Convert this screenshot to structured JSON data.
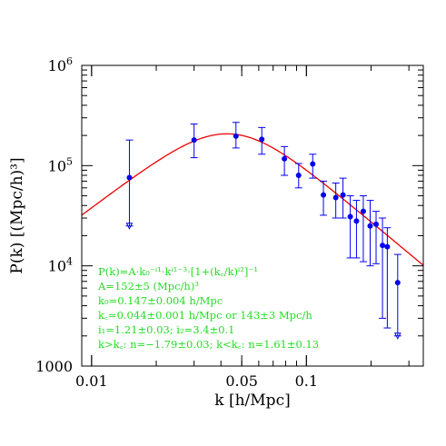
{
  "chart_data": {
    "type": "scatter",
    "x_scale": "log",
    "y_scale": "log",
    "xlim": [
      0.009,
      0.35
    ],
    "ylim": [
      1000,
      1000000
    ],
    "xlabel": "k [h/Mpc]",
    "ylabel": "P(k) [(Mpc/h)³]",
    "x_ticks": [
      {
        "value": 0.01,
        "label": "0.01"
      },
      {
        "value": 0.05,
        "label": "0.05"
      },
      {
        "value": 0.1,
        "label": "0.1"
      }
    ],
    "y_ticks": [
      {
        "value": 1000,
        "label": "1000",
        "base": "",
        "exp": ""
      },
      {
        "value": 10000,
        "label": "",
        "base": "10",
        "exp": "4"
      },
      {
        "value": 100000,
        "label": "",
        "base": "10",
        "exp": "5"
      },
      {
        "value": 1000000,
        "label": "",
        "base": "10",
        "exp": "6"
      }
    ],
    "points": [
      {
        "x": 0.015,
        "y": 76000,
        "lo": 25000,
        "hi": 180000,
        "limit": true
      },
      {
        "x": 0.03,
        "y": 180000,
        "lo": 120000,
        "hi": 260000
      },
      {
        "x": 0.047,
        "y": 197000,
        "lo": 150000,
        "hi": 270000
      },
      {
        "x": 0.062,
        "y": 183000,
        "lo": 130000,
        "hi": 240000
      },
      {
        "x": 0.079,
        "y": 117000,
        "lo": 80000,
        "hi": 155000
      },
      {
        "x": 0.092,
        "y": 80000,
        "lo": 60000,
        "hi": 105000
      },
      {
        "x": 0.107,
        "y": 104000,
        "lo": 75000,
        "hi": 130000
      },
      {
        "x": 0.12,
        "y": 51000,
        "lo": 32000,
        "hi": 70000
      },
      {
        "x": 0.137,
        "y": 48000,
        "lo": 30000,
        "hi": 67000
      },
      {
        "x": 0.148,
        "y": 51000,
        "lo": 30000,
        "hi": 75000
      },
      {
        "x": 0.16,
        "y": 31000,
        "lo": 12000,
        "hi": 50000
      },
      {
        "x": 0.171,
        "y": 28000,
        "lo": 12000,
        "hi": 45000
      },
      {
        "x": 0.184,
        "y": 35000,
        "lo": 11000,
        "hi": 50000
      },
      {
        "x": 0.198,
        "y": 25000,
        "lo": 10000,
        "hi": 45000
      },
      {
        "x": 0.211,
        "y": 26000,
        "lo": 10500,
        "hi": 35000
      },
      {
        "x": 0.226,
        "y": 16000,
        "lo": 3000,
        "hi": 30000
      },
      {
        "x": 0.238,
        "y": 15500,
        "lo": 2400,
        "hi": 24000
      },
      {
        "x": 0.266,
        "y": 6800,
        "lo": 2000,
        "hi": 13000,
        "limit": true
      }
    ],
    "model_curve": {
      "A": 152,
      "k0": 0.147,
      "kc": 0.044,
      "i1": 1.21,
      "i2": 3.4
    },
    "annotations": [
      "P(k)=A·k₀⁻ⁱ¹·kⁱ¹⁻³·[1+(k꜀/k)ⁱ²]⁻¹",
      "A=152±5 (Mpc/h)³",
      "k₀=0.147±0.004 h/Mpc",
      "k꜀=0.044±0.001 h/Mpc or 143±3 Mpc/h",
      "i₁=1.21±0.03; i₂=3.4±0.1",
      "k>k꜀: n=−1.79±0.03; k<k꜀: n=1.61±0.13"
    ],
    "colors": {
      "points": "#0000ee",
      "curve": "#ee0000",
      "annotation": "#22dd22"
    }
  }
}
